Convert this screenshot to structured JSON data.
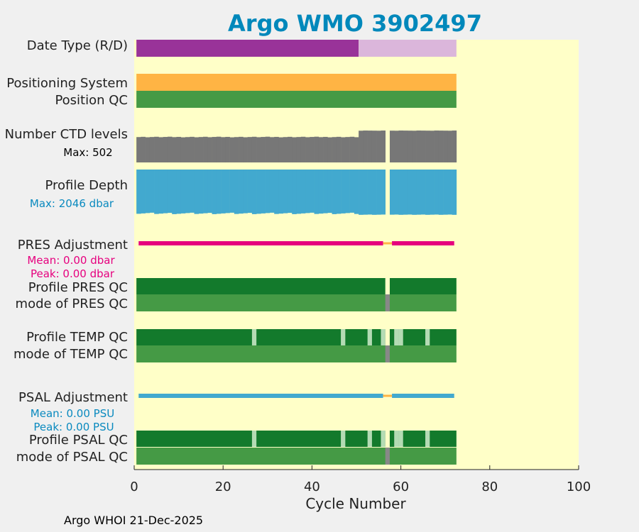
{
  "chart_data": {
    "type": "table",
    "title": "Argo WMO 3902497",
    "xlabel": "Cycle Number",
    "xlim": [
      0,
      100
    ],
    "xticks": [
      0,
      20,
      40,
      60,
      80,
      100
    ],
    "last_cycle": 72,
    "rows": [
      {
        "key": "date_type",
        "label": "Date Type (R/D)"
      },
      {
        "key": "positioning",
        "label": "Positioning System"
      },
      {
        "key": "position_qc",
        "label": "Position QC"
      },
      {
        "key": "ctd_levels",
        "label": "Number CTD levels",
        "note": "Max: 502"
      },
      {
        "key": "profile_depth",
        "label": "Profile Depth",
        "note": "Max: 2046 dbar"
      },
      {
        "key": "pres_adj",
        "label": "PRES Adjustment",
        "notes": [
          "Mean: 0.00 dbar",
          "Peak: 0.00 dbar"
        ]
      },
      {
        "key": "profile_pres_qc",
        "label": "Profile PRES QC"
      },
      {
        "key": "mode_pres_qc",
        "label": "mode of PRES QC"
      },
      {
        "key": "profile_temp_qc",
        "label": "Profile TEMP QC"
      },
      {
        "key": "mode_temp_qc",
        "label": "mode of TEMP QC"
      },
      {
        "key": "psal_adj",
        "label": "PSAL Adjustment",
        "notes": [
          "Mean: 0.00 PSU",
          "Peak: 0.00 PSU"
        ]
      },
      {
        "key": "profile_psal_qc",
        "label": "Profile PSAL QC"
      },
      {
        "key": "mode_psal_qc",
        "label": "mode of PSAL QC"
      }
    ],
    "date_type": {
      "real_time_cycles": [
        1,
        50
      ],
      "delayed_cycles": [
        51,
        72
      ]
    },
    "missing_cycle": 57,
    "light_qc_cycles": {
      "temp": [
        27,
        47,
        53,
        56,
        59,
        60,
        66
      ],
      "psal": [
        27,
        47,
        53,
        56,
        59,
        60,
        66
      ]
    },
    "ctd_levels_approx": {
      "cycles_1_50": 400,
      "cycles_51_72": 502
    },
    "profile_depth_approx": {
      "typical_dbar": 2000,
      "max_dbar": 2046
    },
    "adjustment_gap_cycles": [
      56,
      57
    ],
    "footer": "Argo WHOI 21-Dec-2025"
  },
  "colors": {
    "background": "#f0f0f0",
    "plot_bg": "#ffffc8",
    "title": "#0088bb",
    "realtime": "#993399",
    "delayed": "#dbb6db",
    "positioning": "#ffb444",
    "qc_good": "#459a45",
    "qc_profile": "#137a2c",
    "qc_light": "#b4dbb4",
    "ctd": "#777777",
    "depth": "#42a9cf",
    "pres_adj": "#e6007e",
    "psal_adj": "#42a9cf",
    "gap": "#ffb444",
    "mode_gap": "#888888"
  }
}
